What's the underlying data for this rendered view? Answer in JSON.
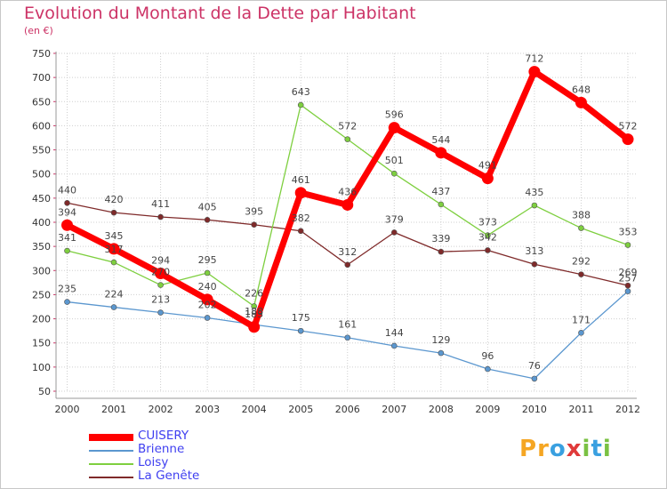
{
  "header": {
    "title": "Evolution du Montant de la Dette par Habitant",
    "subtitle": "(en €)"
  },
  "logo": {
    "letters": [
      "P",
      "r",
      "o",
      "x",
      "i",
      "t",
      "i"
    ],
    "colors": [
      "#f5a623",
      "#f5a623",
      "#3aa0e0",
      "#e03a3a",
      "#7ac143",
      "#3aa0e0",
      "#7ac143"
    ]
  },
  "chart_data": {
    "type": "line",
    "title": "Evolution du Montant de la Dette par Habitant",
    "ylabel": "(en €)",
    "xlabel": "",
    "ylim": [
      50,
      750
    ],
    "yticks": [
      50,
      100,
      150,
      200,
      250,
      300,
      350,
      400,
      450,
      500,
      550,
      600,
      650,
      700,
      750
    ],
    "categories": [
      "2000",
      "2001",
      "2002",
      "2003",
      "2004",
      "2005",
      "2006",
      "2007",
      "2008",
      "2009",
      "2010",
      "2011",
      "2012"
    ],
    "series": [
      {
        "name": "La Genête",
        "color": "#7f2a2a",
        "values": [
          440,
          420,
          411,
          405,
          395,
          382,
          312,
          379,
          339,
          342,
          313,
          292,
          269
        ]
      },
      {
        "name": "Loisy",
        "color": "#7ecf3f",
        "values": [
          341,
          317,
          270,
          295,
          226,
          643,
          572,
          501,
          437,
          373,
          435,
          388,
          353
        ]
      },
      {
        "name": "Brienne",
        "color": "#5b97cf",
        "values": [
          235,
          224,
          213,
          202,
          188,
          175,
          161,
          144,
          129,
          96,
          76,
          171,
          257
        ]
      },
      {
        "name": "CUISERY",
        "color": "#ff0000",
        "values": [
          394,
          345,
          294,
          240,
          183,
          461,
          436,
          596,
          544,
          491,
          712,
          648,
          572
        ]
      }
    ],
    "value_labels": [
      {
        "series": "La Genête",
        "labels": [
          "440",
          "420",
          "411",
          "405",
          "395",
          "382",
          "312",
          "379",
          "339",
          "342",
          "313",
          "292",
          "269"
        ]
      },
      {
        "series": "Loisy",
        "labels": [
          "341",
          "317",
          "270",
          "295",
          "226",
          "643",
          "572",
          "501",
          "437",
          "373",
          "435",
          "388",
          "353"
        ]
      },
      {
        "series": "Brienne",
        "labels": [
          "235",
          "224",
          "213",
          "202",
          "188",
          "175",
          "161",
          "144",
          "129",
          "96",
          "76",
          "171",
          "257"
        ]
      },
      {
        "series": "CUISERY",
        "labels": [
          "394",
          "345",
          "294",
          "240",
          "183",
          "461",
          "436",
          "596",
          "544",
          "491",
          "712",
          "648",
          "572"
        ]
      }
    ]
  },
  "legend": [
    {
      "label": "CUISERY",
      "color": "#ff0000"
    },
    {
      "label": "Brienne",
      "color": "#5b97cf"
    },
    {
      "label": "Loisy",
      "color": "#7ecf3f"
    },
    {
      "label": "La Genête",
      "color": "#7f2a2a"
    }
  ]
}
